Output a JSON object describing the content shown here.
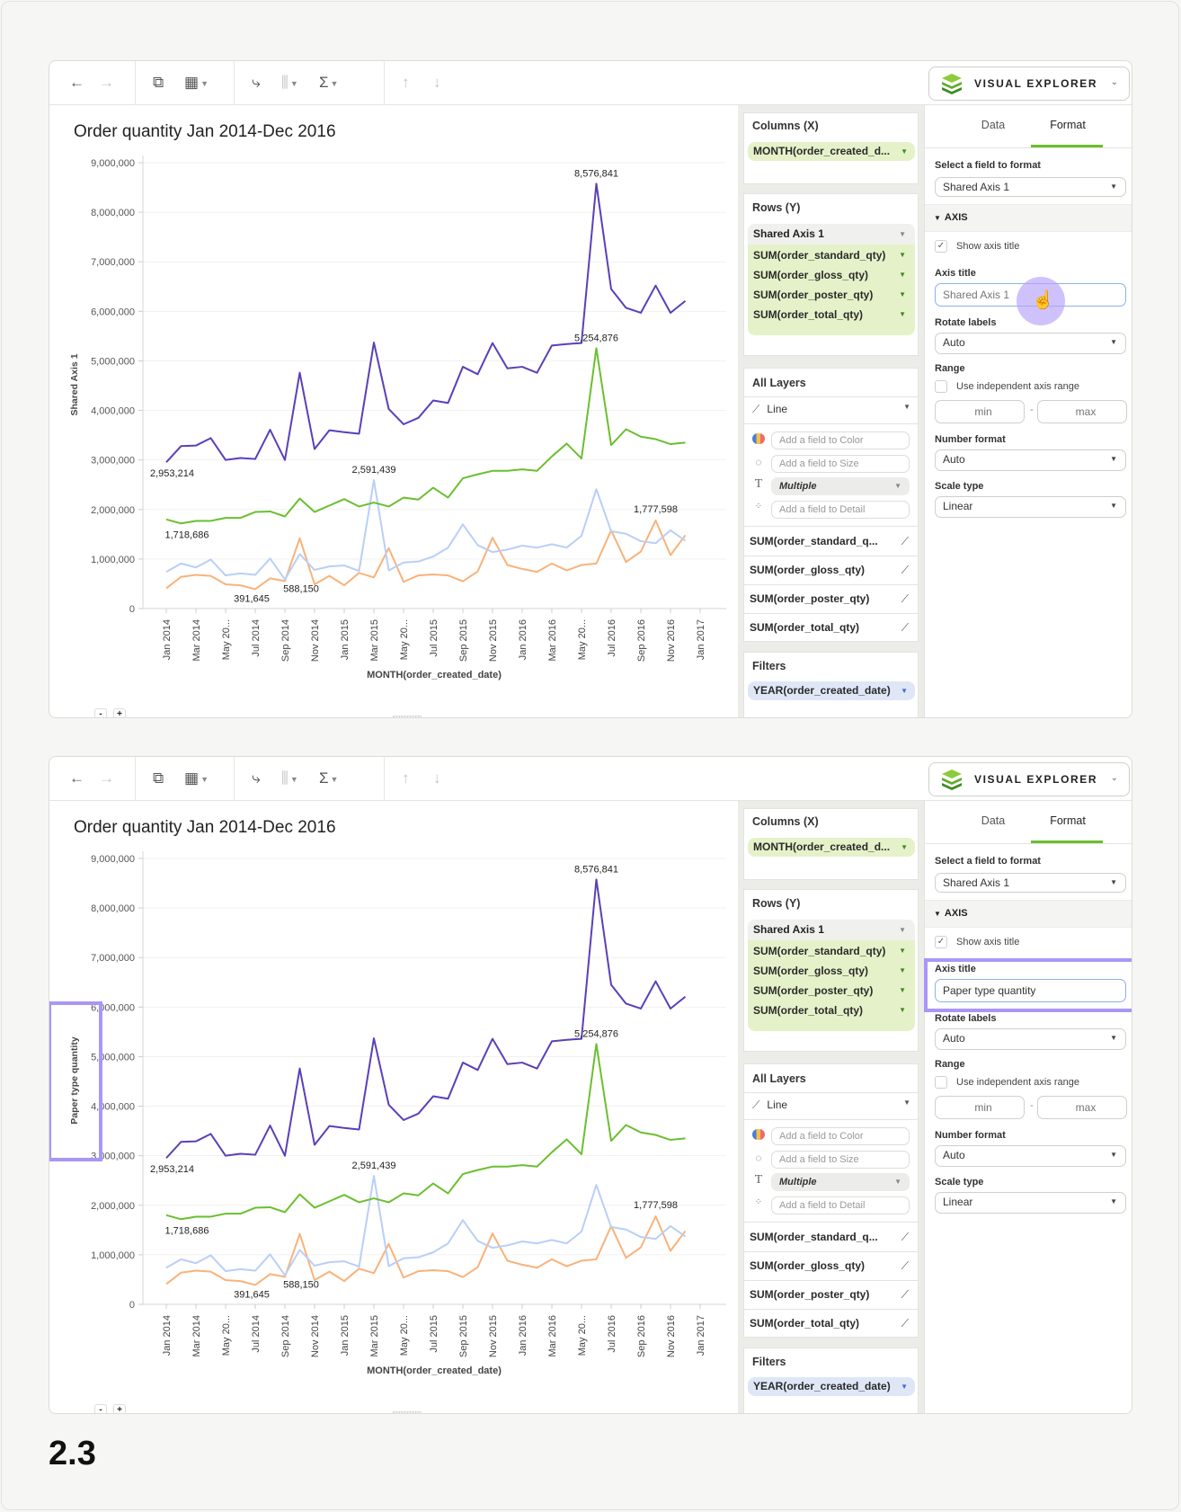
{
  "ui": {
    "toolbar": {
      "back_icon": "←",
      "forward_icon": "→",
      "add_sheet_icon": "⧉",
      "clear_chart_icon": "▦",
      "swap_axes_icon": "⤷",
      "sort_chart_icon": "⫼",
      "sigma_icon": "Σ",
      "sort_asc_icon": "↑",
      "sort_desc_icon": "↓",
      "caret": "▼"
    },
    "visual_explorer": {
      "label": "VISUAL EXPLORER",
      "chevron": "⌄"
    },
    "columns": {
      "title": "Columns (X)",
      "pill": "MONTH(order_created_d..."
    },
    "rows": {
      "title": "Rows (Y)",
      "group": "Shared Axis 1",
      "items": [
        "SUM(order_standard_qty)",
        "SUM(order_gloss_qty)",
        "SUM(order_poster_qty)",
        "SUM(order_total_qty)"
      ]
    },
    "layers": {
      "title": "All Layers",
      "mark_type": "Line",
      "color_placeholder": "Add a field to Color",
      "size_placeholder": "Add a field to Size",
      "label_value": "Multiple",
      "detail_placeholder": "Add a field to Detail",
      "text_icon": "T",
      "series": [
        "SUM(order_standard_q...",
        "SUM(order_gloss_qty)",
        "SUM(order_poster_qty)",
        "SUM(order_total_qty)"
      ]
    },
    "filters": {
      "title": "Filters",
      "pill": "YEAR(order_created_date)"
    },
    "format": {
      "tab_data": "Data",
      "tab_format": "Format",
      "active_tab": "Format",
      "select_field_label": "Select a field to format",
      "select_field_value": "Shared Axis 1",
      "section": "AXIS",
      "show_axis_title_label": "Show axis title",
      "show_axis_title_checked": true,
      "axis_title_label": "Axis title",
      "rotate_labels_label": "Rotate labels",
      "rotate_labels_value": "Auto",
      "range_label": "Range",
      "independent_range_label": "Use independent axis range",
      "independent_range_checked": false,
      "min_placeholder": "min",
      "max_placeholder": "max",
      "number_format_label": "Number format",
      "number_format_value": "Auto",
      "scale_type_label": "Scale type",
      "scale_type_value": "Linear"
    },
    "zoom_out": "-",
    "zoom_in": "+",
    "colors": {
      "accent_green": "#6abf2e",
      "highlight": "#a996f6",
      "filter_pill": "#dfe7f7",
      "field_pill": "#e5f2c9"
    }
  },
  "panels": [
    {
      "axis_title_input_value": "",
      "axis_title_input_placeholder": "Shared Axis 1",
      "cursor": "hand-pointer"
    },
    {
      "axis_title_input_value": "Paper type quantity",
      "axis_title_input_placeholder": ""
    }
  ],
  "step_label": "2.3",
  "chart_data": [
    {
      "type": "line",
      "title": "Order quantity Jan 2014-Dec 2016",
      "xlabel": "MONTH(order_created_date)",
      "ylabel": "Shared Axis 1",
      "ylim": [
        0,
        9000000
      ],
      "yticks": [
        "0",
        "1,000,000",
        "2,000,000",
        "3,000,000",
        "4,000,000",
        "5,000,000",
        "6,000,000",
        "7,000,000",
        "8,000,000",
        "9,000,000"
      ],
      "xticks": [
        "Jan 2014",
        "Mar 2014",
        "May 20...",
        "Jul 2014",
        "Sep 2014",
        "Nov 2014",
        "Jan 2015",
        "Mar 2015",
        "May 20...",
        "Jul 2015",
        "Sep 2015",
        "Nov 2015",
        "Jan 2016",
        "Mar 2016",
        "May 20...",
        "Jul 2016",
        "Sep 2016",
        "Nov 2016",
        "Jan 2017"
      ],
      "grid": true,
      "x": [
        "Jan 2014",
        "Feb 2014",
        "Mar 2014",
        "Apr 2014",
        "May 2014",
        "Jun 2014",
        "Jul 2014",
        "Aug 2014",
        "Sep 2014",
        "Oct 2014",
        "Nov 2014",
        "Dec 2014",
        "Jan 2015",
        "Feb 2015",
        "Mar 2015",
        "Apr 2015",
        "May 2015",
        "Jun 2015",
        "Jul 2015",
        "Aug 2015",
        "Sep 2015",
        "Oct 2015",
        "Nov 2015",
        "Dec 2015",
        "Jan 2016",
        "Feb 2016",
        "Mar 2016",
        "Apr 2016",
        "May 2016",
        "Jun 2016",
        "Jul 2016",
        "Aug 2016",
        "Sep 2016",
        "Oct 2016",
        "Nov 2016",
        "Dec 2016"
      ],
      "series": [
        {
          "field": "SUM(order_total_qty)",
          "color": "#5b3fb8",
          "values": [
            2953214,
            3280000,
            3290000,
            3440000,
            3000000,
            3040000,
            3020000,
            3610000,
            3000000,
            4760000,
            3220000,
            3600000,
            3560000,
            3530000,
            5370000,
            4030000,
            3720000,
            3850000,
            4200000,
            4150000,
            4880000,
            4730000,
            5360000,
            4850000,
            4880000,
            4760000,
            5310000,
            5340000,
            5360000,
            8576841,
            6450000,
            6070000,
            5970000,
            6520000,
            5970000,
            6210000
          ]
        },
        {
          "field": "SUM(order_standard_qty)",
          "color": "#6abf2e",
          "values": [
            1800000,
            1718686,
            1770000,
            1770000,
            1830000,
            1830000,
            1950000,
            1960000,
            1860000,
            2220000,
            1950000,
            2080000,
            2210000,
            2060000,
            2140000,
            2060000,
            2240000,
            2200000,
            2440000,
            2240000,
            2630000,
            2710000,
            2780000,
            2780000,
            2810000,
            2780000,
            3070000,
            3330000,
            3030000,
            5254876,
            3300000,
            3620000,
            3470000,
            3420000,
            3320000,
            3350000
          ]
        },
        {
          "field": "SUM(order_gloss_qty)",
          "color": "#b9cff7",
          "values": [
            740000,
            910000,
            830000,
            990000,
            670000,
            710000,
            680000,
            1010000,
            588150,
            1100000,
            780000,
            850000,
            870000,
            760000,
            2591439,
            770000,
            930000,
            950000,
            1050000,
            1230000,
            1700000,
            1280000,
            1140000,
            1190000,
            1270000,
            1230000,
            1300000,
            1230000,
            1470000,
            2410000,
            1560000,
            1510000,
            1360000,
            1320000,
            1580000,
            1370000
          ]
        },
        {
          "field": "SUM(order_poster_qty)",
          "color": "#f9b27a",
          "values": [
            410000,
            640000,
            680000,
            660000,
            490000,
            470000,
            391645,
            610000,
            555000,
            1420000,
            490000,
            660000,
            470000,
            720000,
            630000,
            1220000,
            540000,
            670000,
            690000,
            670000,
            550000,
            750000,
            1430000,
            880000,
            800000,
            740000,
            910000,
            770000,
            880000,
            910000,
            1580000,
            940000,
            1150000,
            1777598,
            1080000,
            1480000
          ]
        }
      ],
      "data_labels": [
        {
          "series": 0,
          "x": "Jan 2014",
          "text": "2,953,214"
        },
        {
          "series": 1,
          "x": "Feb 2014",
          "text": "1,718,686"
        },
        {
          "series": 3,
          "x": "Jul 2014",
          "text": "391,645"
        },
        {
          "series": 2,
          "x": "Sep 2014",
          "text": "588,150"
        },
        {
          "series": 2,
          "x": "Mar 2015",
          "text": "2,591,439"
        },
        {
          "series": 0,
          "x": "Jun 2016",
          "text": "8,576,841"
        },
        {
          "series": 1,
          "x": "Jun 2016",
          "text": "5,254,876"
        },
        {
          "series": 3,
          "x": "Oct 2016",
          "text": "1,777,598"
        }
      ]
    },
    {
      "type": "line",
      "title": "Order quantity Jan 2014-Dec 2016",
      "xlabel": "MONTH(order_created_date)",
      "ylabel": "Paper type quantity",
      "ylim": [
        0,
        9000000
      ],
      "yticks": [
        "0",
        "1,000,000",
        "2,000,000",
        "3,000,000",
        "4,000,000",
        "5,000,000",
        "6,000,000",
        "7,000,000",
        "8,000,000",
        "9,000,000"
      ],
      "xticks": [
        "Jan 2014",
        "Mar 2014",
        "May 20...",
        "Jul 2014",
        "Sep 2014",
        "Nov 2014",
        "Jan 2015",
        "Mar 2015",
        "May 20...",
        "Jul 2015",
        "Sep 2015",
        "Nov 2015",
        "Jan 2016",
        "Mar 2016",
        "May 20...",
        "Jul 2016",
        "Sep 2016",
        "Nov 2016",
        "Jan 2017"
      ],
      "grid": true,
      "x": [
        "Jan 2014",
        "Feb 2014",
        "Mar 2014",
        "Apr 2014",
        "May 2014",
        "Jun 2014",
        "Jul 2014",
        "Aug 2014",
        "Sep 2014",
        "Oct 2014",
        "Nov 2014",
        "Dec 2014",
        "Jan 2015",
        "Feb 2015",
        "Mar 2015",
        "Apr 2015",
        "May 2015",
        "Jun 2015",
        "Jul 2015",
        "Aug 2015",
        "Sep 2015",
        "Oct 2015",
        "Nov 2015",
        "Dec 2015",
        "Jan 2016",
        "Feb 2016",
        "Mar 2016",
        "Apr 2016",
        "May 2016",
        "Jun 2016",
        "Jul 2016",
        "Aug 2016",
        "Sep 2016",
        "Oct 2016",
        "Nov 2016",
        "Dec 2016"
      ],
      "series": [
        {
          "field": "SUM(order_total_qty)",
          "color": "#5b3fb8",
          "values": [
            2953214,
            3280000,
            3290000,
            3440000,
            3000000,
            3040000,
            3020000,
            3610000,
            3000000,
            4760000,
            3220000,
            3600000,
            3560000,
            3530000,
            5370000,
            4030000,
            3720000,
            3850000,
            4200000,
            4150000,
            4880000,
            4730000,
            5360000,
            4850000,
            4880000,
            4760000,
            5310000,
            5340000,
            5360000,
            8576841,
            6450000,
            6070000,
            5970000,
            6520000,
            5970000,
            6210000
          ]
        },
        {
          "field": "SUM(order_standard_qty)",
          "color": "#6abf2e",
          "values": [
            1800000,
            1718686,
            1770000,
            1770000,
            1830000,
            1830000,
            1950000,
            1960000,
            1860000,
            2220000,
            1950000,
            2080000,
            2210000,
            2060000,
            2140000,
            2060000,
            2240000,
            2200000,
            2440000,
            2240000,
            2630000,
            2710000,
            2780000,
            2780000,
            2810000,
            2780000,
            3070000,
            3330000,
            3030000,
            5254876,
            3300000,
            3620000,
            3470000,
            3420000,
            3320000,
            3350000
          ]
        },
        {
          "field": "SUM(order_gloss_qty)",
          "color": "#b9cff7",
          "values": [
            740000,
            910000,
            830000,
            990000,
            670000,
            710000,
            680000,
            1010000,
            588150,
            1100000,
            780000,
            850000,
            870000,
            760000,
            2591439,
            770000,
            930000,
            950000,
            1050000,
            1230000,
            1700000,
            1280000,
            1140000,
            1190000,
            1270000,
            1230000,
            1300000,
            1230000,
            1470000,
            2410000,
            1560000,
            1510000,
            1360000,
            1320000,
            1580000,
            1370000
          ]
        },
        {
          "field": "SUM(order_poster_qty)",
          "color": "#f9b27a",
          "values": [
            410000,
            640000,
            680000,
            660000,
            490000,
            470000,
            391645,
            610000,
            555000,
            1420000,
            490000,
            660000,
            470000,
            720000,
            630000,
            1220000,
            540000,
            670000,
            690000,
            670000,
            550000,
            750000,
            1430000,
            880000,
            800000,
            740000,
            910000,
            770000,
            880000,
            910000,
            1580000,
            940000,
            1150000,
            1777598,
            1080000,
            1480000
          ]
        }
      ],
      "data_labels": [
        {
          "series": 0,
          "x": "Jan 2014",
          "text": "2,953,214"
        },
        {
          "series": 1,
          "x": "Feb 2014",
          "text": "1,718,686"
        },
        {
          "series": 3,
          "x": "Jul 2014",
          "text": "391,645"
        },
        {
          "series": 2,
          "x": "Sep 2014",
          "text": "588,150"
        },
        {
          "series": 2,
          "x": "Mar 2015",
          "text": "2,591,439"
        },
        {
          "series": 0,
          "x": "Jun 2016",
          "text": "8,576,841"
        },
        {
          "series": 1,
          "x": "Jun 2016",
          "text": "5,254,876"
        },
        {
          "series": 3,
          "x": "Oct 2016",
          "text": "1,777,598"
        }
      ]
    }
  ]
}
